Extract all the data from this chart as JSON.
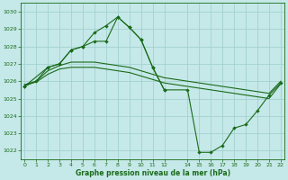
{
  "title": "Graphe pression niveau de la mer (hPa)",
  "bg_color": "#c5e8e8",
  "grid_color": "#9ecece",
  "line_color": "#1a6b1a",
  "ylim": [
    1021.5,
    1030.5
  ],
  "yticks": [
    1022,
    1023,
    1024,
    1025,
    1026,
    1027,
    1028,
    1029,
    1030
  ],
  "xticks": [
    0,
    1,
    2,
    3,
    4,
    5,
    6,
    7,
    8,
    9,
    10,
    11,
    12,
    14,
    15,
    16,
    17,
    18,
    19,
    20,
    21,
    22
  ],
  "xlim": [
    -0.3,
    22.3
  ],
  "line1_x": [
    0,
    1,
    2,
    3,
    4,
    5,
    6,
    7,
    8,
    9,
    10,
    11,
    12
  ],
  "line1_y": [
    1025.7,
    1026.0,
    1026.8,
    1027.0,
    1027.8,
    1028.0,
    1028.8,
    1029.2,
    1029.7,
    1029.1,
    1028.4,
    1026.8,
    1025.5
  ],
  "line2_x": [
    0,
    1,
    2,
    3,
    4,
    5,
    6,
    7,
    8,
    9,
    10,
    11,
    12,
    14,
    15,
    16,
    17,
    18,
    19,
    20,
    21,
    22
  ],
  "line2_y": [
    1025.8,
    1026.0,
    1026.6,
    1026.9,
    1027.1,
    1027.1,
    1027.1,
    1027.0,
    1026.9,
    1026.8,
    1026.6,
    1026.4,
    1026.2,
    1026.0,
    1025.9,
    1025.8,
    1025.7,
    1025.6,
    1025.5,
    1025.4,
    1025.3,
    1026.0
  ],
  "line3_x": [
    0,
    1,
    2,
    3,
    4,
    5,
    6,
    7,
    8,
    9,
    10,
    11,
    12,
    14,
    15,
    16,
    17,
    18,
    19,
    20,
    21,
    22
  ],
  "line3_y": [
    1025.8,
    1025.95,
    1026.4,
    1026.7,
    1026.8,
    1026.8,
    1026.8,
    1026.7,
    1026.6,
    1026.5,
    1026.3,
    1026.1,
    1025.9,
    1025.7,
    1025.6,
    1025.5,
    1025.4,
    1025.3,
    1025.2,
    1025.1,
    1025.0,
    1025.85
  ],
  "line4_x": [
    0,
    2,
    3,
    4,
    5,
    6,
    7,
    8,
    9,
    10,
    11,
    12,
    14,
    15,
    16,
    17,
    18,
    19,
    20,
    21,
    22
  ],
  "line4_y": [
    1025.7,
    1026.8,
    1027.0,
    1027.8,
    1028.0,
    1028.3,
    1028.3,
    1029.7,
    1029.1,
    1028.4,
    1026.8,
    1025.5,
    1025.5,
    1021.9,
    1021.9,
    1022.3,
    1023.3,
    1023.5,
    1024.3,
    1025.2,
    1025.9
  ]
}
